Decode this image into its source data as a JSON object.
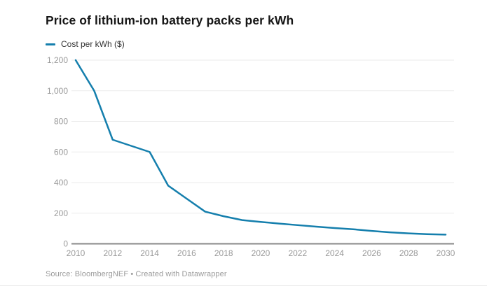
{
  "header": {
    "title": "Price of lithium-ion battery packs per kWh",
    "legend": {
      "label": "Cost per kWh ($)"
    }
  },
  "chart_data": {
    "type": "line",
    "title": "Price of lithium-ion battery packs per kWh",
    "x": [
      2010,
      2011,
      2012,
      2013,
      2014,
      2015,
      2016,
      2017,
      2018,
      2019,
      2020,
      2021,
      2022,
      2023,
      2024,
      2025,
      2026,
      2027,
      2028,
      2029,
      2030
    ],
    "series": [
      {
        "name": "Cost per kWh ($)",
        "color": "#157fad",
        "values": [
          1200,
          1000,
          680,
          640,
          600,
          380,
          295,
          210,
          180,
          155,
          143,
          132,
          122,
          112,
          103,
          95,
          84,
          75,
          68,
          63,
          60
        ]
      }
    ],
    "xlabel": "",
    "ylabel": "",
    "xlim": [
      2010,
      2030
    ],
    "ylim": [
      0,
      1200
    ],
    "x_ticks": [
      {
        "value": 2010,
        "label": "2010"
      },
      {
        "value": 2012,
        "label": "2012"
      },
      {
        "value": 2014,
        "label": "2014"
      },
      {
        "value": 2016,
        "label": "2016"
      },
      {
        "value": 2018,
        "label": "2018"
      },
      {
        "value": 2020,
        "label": "2020"
      },
      {
        "value": 2022,
        "label": "2022"
      },
      {
        "value": 2024,
        "label": "2024"
      },
      {
        "value": 2026,
        "label": "2026"
      },
      {
        "value": 2028,
        "label": "2028"
      },
      {
        "value": 2030,
        "label": "2030"
      }
    ],
    "y_ticks": [
      {
        "value": 0,
        "label": "0"
      },
      {
        "value": 200,
        "label": "200"
      },
      {
        "value": 400,
        "label": "400"
      },
      {
        "value": 600,
        "label": "600"
      },
      {
        "value": 800,
        "label": "800"
      },
      {
        "value": 1000,
        "label": "1,000"
      },
      {
        "value": 1200,
        "label": "1,200"
      }
    ],
    "grid": "horizontal",
    "legend_position": "top-left",
    "colors": {
      "line": "#157fad",
      "grid": "#ebebeb",
      "axis": "#888888",
      "tick_text": "#9a9a9a"
    }
  },
  "footer": {
    "source": "Source: BloombergNEF • Created with Datawrapper"
  }
}
